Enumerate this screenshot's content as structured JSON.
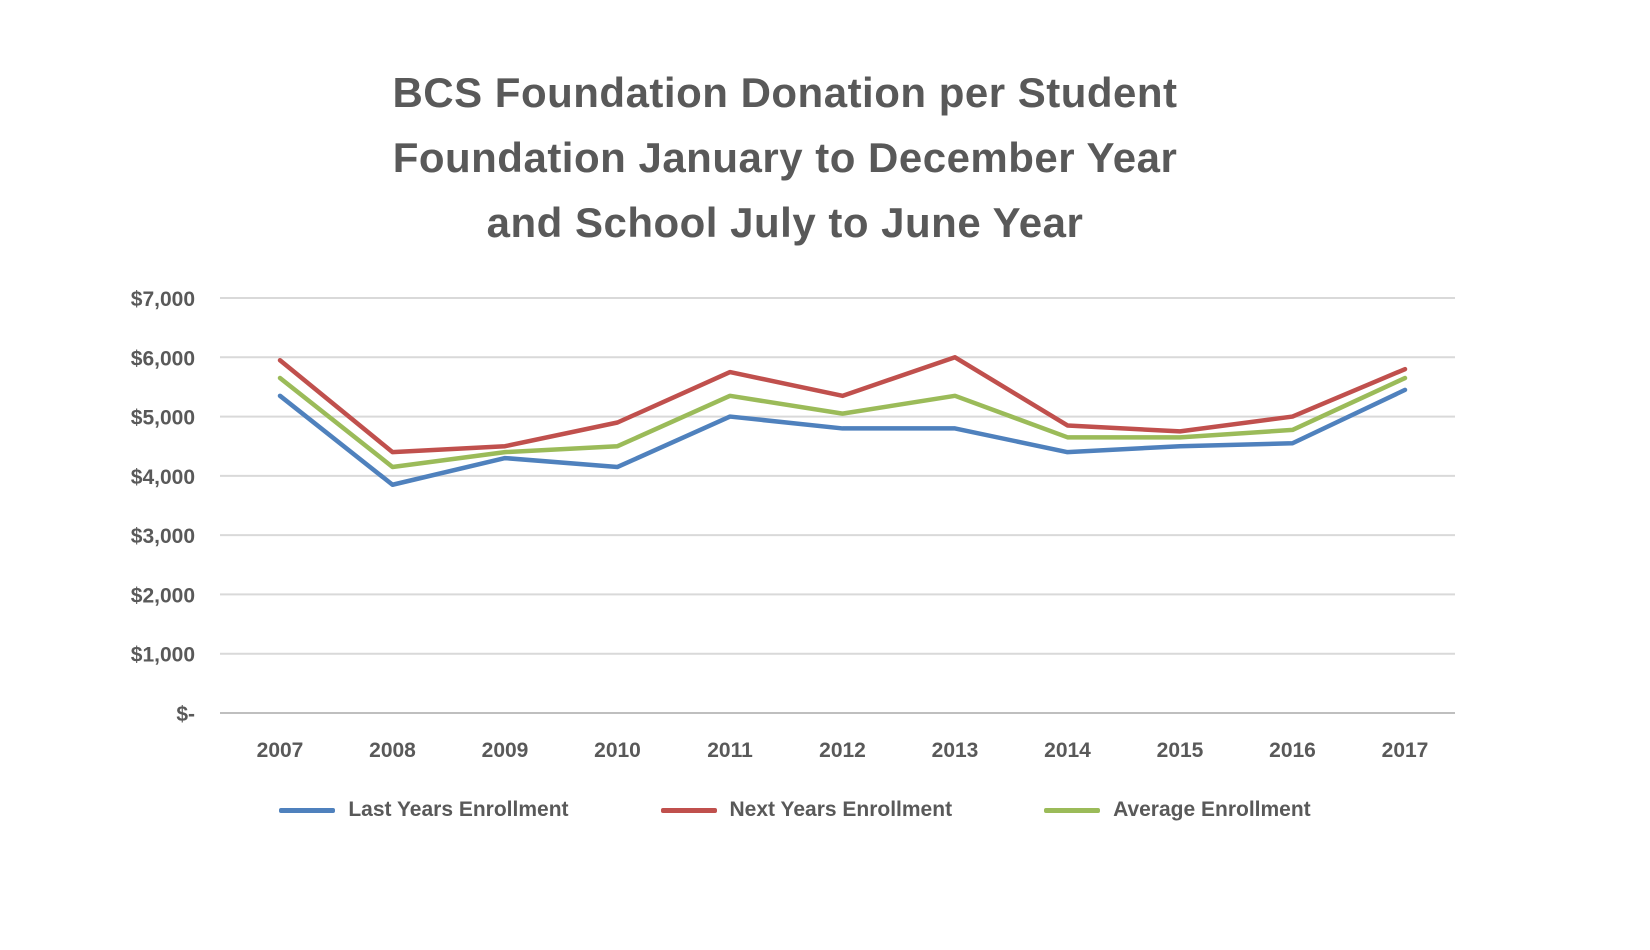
{
  "chart_data": {
    "type": "line",
    "title": "BCS Foundation Donation per Student Foundation January to December Year and School July to June Year",
    "title_lines": [
      "BCS Foundation Donation per Student",
      "Foundation January to December Year",
      "and School July to June Year"
    ],
    "categories": [
      "2007",
      "2008",
      "2009",
      "2010",
      "2011",
      "2012",
      "2013",
      "2014",
      "2015",
      "2016",
      "2017"
    ],
    "series": [
      {
        "name": "Last Years Enrollment",
        "color": "#4F81BD",
        "values": [
          5350,
          3850,
          4300,
          4150,
          5000,
          4800,
          4800,
          4400,
          4500,
          4550,
          5450
        ]
      },
      {
        "name": "Next Years Enrollment",
        "color": "#C0504D",
        "values": [
          5950,
          4400,
          4500,
          4900,
          5750,
          5350,
          6000,
          4850,
          4750,
          5000,
          5800
        ]
      },
      {
        "name": "Average Enrollment",
        "color": "#9BBB59",
        "values": [
          5650,
          4150,
          4400,
          4500,
          5350,
          5050,
          5350,
          4650,
          4650,
          4775,
          5650
        ]
      }
    ],
    "xlabel": "",
    "ylabel": "",
    "ylim": [
      0,
      7000
    ],
    "ytick_step": 1000,
    "ytick_labels": [
      "$-",
      "$1,000",
      "$2,000",
      "$3,000",
      "$4,000",
      "$5,000",
      "$6,000",
      "$7,000"
    ],
    "grid": true,
    "legend_position": "bottom"
  },
  "colors": {
    "title_text": "#595959",
    "axis_text": "#595959",
    "gridline": "#D9D9D9",
    "axis_line": "#BFBFBF",
    "background": "#FFFFFF"
  }
}
